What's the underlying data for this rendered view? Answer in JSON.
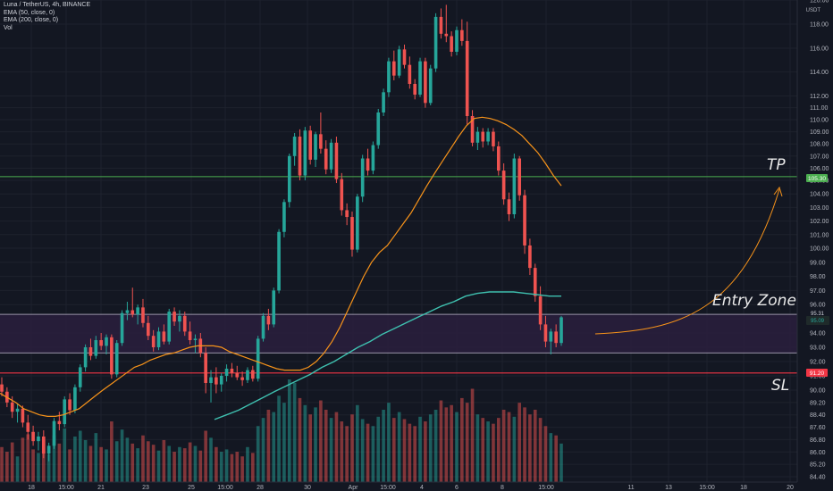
{
  "header": {
    "symbol_line": "Luna / TetherUS, 4h, BINANCE",
    "indicators": [
      "EMA (50, close, 0)",
      "EMA (200, close, 0)",
      "Vol"
    ],
    "currency": "USDT"
  },
  "colors": {
    "background": "#131722",
    "bull": "#26a69a",
    "bear": "#ef5350",
    "ema50": "#f7931a",
    "ema200": "#3fc1b0",
    "tp_line": "#4caf50",
    "sl_line": "#f23645",
    "zone_fill": "#2a1f3d",
    "zone_border": "#9a94a8"
  },
  "annotations": {
    "tp": "TP",
    "entry": "Entry Zone",
    "sl": "SL"
  },
  "price_tags": {
    "tp": "105.30",
    "sl": "91.20",
    "zone_top": "95.31",
    "current": "95.09"
  },
  "chart_data": {
    "type": "candlestick",
    "yaxis_ticks": [
      84.4,
      85.2,
      86.0,
      86.8,
      87.6,
      88.4,
      89.2,
      90.0,
      91.0,
      92.0,
      93.0,
      94.0,
      95.0,
      96.0,
      97.0,
      98.0,
      99.0,
      100.0,
      101.0,
      102.0,
      103.0,
      104.0,
      105.0,
      106.0,
      107.0,
      108.0,
      109.0,
      110.0,
      111.0,
      112.0,
      114.0,
      116.0,
      118.0,
      120.0
    ],
    "xaxis_ticks": [
      "18",
      "15:00",
      "21",
      "23",
      "25",
      "15:00",
      "28",
      "30",
      "Apr",
      "15:00",
      "4",
      "6",
      "8",
      "15:00",
      "11",
      "13",
      "15:00",
      "18",
      "20"
    ],
    "levels": {
      "tp": 105.3,
      "sl": 91.2,
      "zone_top": 95.31,
      "zone_bottom": 92.6
    },
    "ohlc": [
      [
        90.4,
        90.9,
        89.6,
        89.9
      ],
      [
        89.9,
        90.2,
        88.9,
        89.2
      ],
      [
        89.2,
        89.6,
        88.2,
        88.6
      ],
      [
        88.6,
        89.1,
        87.9,
        88.8
      ],
      [
        88.8,
        89.0,
        87.6,
        87.9
      ],
      [
        87.9,
        88.4,
        86.8,
        87.3
      ],
      [
        87.3,
        87.7,
        86.4,
        86.7
      ],
      [
        86.7,
        87.3,
        86.1,
        87.0
      ],
      [
        87.0,
        87.4,
        85.6,
        85.9
      ],
      [
        85.9,
        86.6,
        85.4,
        86.4
      ],
      [
        86.4,
        88.2,
        86.2,
        88.0
      ],
      [
        88.0,
        88.6,
        87.4,
        87.8
      ],
      [
        87.8,
        89.6,
        87.6,
        89.4
      ],
      [
        89.4,
        89.8,
        88.4,
        88.7
      ],
      [
        88.7,
        90.4,
        88.5,
        90.2
      ],
      [
        90.2,
        91.8,
        89.9,
        91.6
      ],
      [
        91.6,
        93.2,
        91.3,
        93.0
      ],
      [
        93.0,
        93.6,
        92.1,
        92.4
      ],
      [
        92.4,
        93.8,
        92.2,
        93.5
      ],
      [
        93.5,
        94.0,
        92.8,
        93.1
      ],
      [
        93.1,
        93.9,
        92.5,
        93.7
      ],
      [
        93.7,
        93.9,
        90.8,
        91.1
      ],
      [
        91.1,
        93.5,
        90.9,
        93.3
      ],
      [
        93.3,
        95.6,
        93.1,
        95.4
      ],
      [
        95.4,
        96.2,
        94.9,
        95.6
      ],
      [
        95.6,
        97.2,
        95.1,
        95.3
      ],
      [
        95.3,
        96.0,
        94.6,
        95.8
      ],
      [
        95.8,
        96.4,
        94.4,
        94.7
      ],
      [
        94.7,
        95.2,
        93.5,
        93.8
      ],
      [
        93.8,
        94.2,
        92.7,
        93.0
      ],
      [
        93.0,
        94.4,
        92.8,
        94.1
      ],
      [
        94.1,
        94.6,
        93.2,
        93.4
      ],
      [
        93.4,
        95.7,
        93.2,
        95.5
      ],
      [
        95.5,
        95.8,
        94.5,
        94.8
      ],
      [
        94.8,
        95.6,
        94.1,
        95.2
      ],
      [
        95.2,
        95.5,
        93.8,
        94.1
      ],
      [
        94.1,
        94.8,
        93.2,
        93.5
      ],
      [
        93.5,
        93.9,
        92.6,
        93.6
      ],
      [
        93.6,
        94.0,
        92.3,
        92.6
      ],
      [
        92.6,
        93.0,
        89.8,
        90.5
      ],
      [
        90.5,
        91.4,
        89.2,
        90.9
      ],
      [
        90.9,
        91.6,
        89.8,
        90.4
      ],
      [
        90.4,
        91.2,
        89.9,
        91.0
      ],
      [
        91.0,
        91.8,
        90.6,
        91.5
      ],
      [
        91.5,
        91.9,
        90.9,
        91.2
      ],
      [
        91.2,
        91.7,
        90.7,
        90.9
      ],
      [
        90.9,
        91.3,
        90.3,
        90.7
      ],
      [
        90.7,
        91.6,
        90.5,
        91.4
      ],
      [
        91.4,
        91.7,
        90.6,
        90.8
      ],
      [
        90.8,
        93.8,
        90.6,
        93.6
      ],
      [
        93.6,
        95.4,
        93.4,
        95.2
      ],
      [
        95.2,
        95.7,
        94.2,
        94.6
      ],
      [
        94.6,
        97.2,
        94.4,
        97.0
      ],
      [
        97.0,
        101.4,
        96.8,
        101.2
      ],
      [
        101.2,
        103.6,
        100.8,
        103.4
      ],
      [
        103.4,
        107.2,
        103.0,
        107.0
      ],
      [
        107.0,
        108.9,
        106.2,
        108.6
      ],
      [
        108.6,
        109.2,
        105.0,
        105.4
      ],
      [
        105.4,
        109.4,
        105.0,
        109.1
      ],
      [
        109.1,
        109.5,
        106.3,
        106.7
      ],
      [
        106.7,
        109.0,
        106.1,
        108.8
      ],
      [
        108.8,
        110.6,
        107.2,
        107.6
      ],
      [
        107.6,
        108.3,
        105.5,
        105.9
      ],
      [
        105.9,
        108.4,
        105.6,
        108.1
      ],
      [
        108.1,
        108.6,
        104.8,
        105.1
      ],
      [
        105.1,
        105.6,
        102.4,
        102.8
      ],
      [
        102.8,
        103.3,
        101.7,
        102.3
      ],
      [
        102.3,
        102.7,
        99.4,
        99.9
      ],
      [
        99.9,
        104.0,
        99.7,
        103.8
      ],
      [
        103.8,
        107.1,
        103.4,
        106.8
      ],
      [
        106.8,
        107.6,
        105.4,
        105.8
      ],
      [
        105.8,
        108.2,
        105.5,
        107.9
      ],
      [
        107.9,
        110.9,
        107.6,
        110.6
      ],
      [
        110.6,
        112.6,
        110.3,
        112.3
      ],
      [
        112.3,
        115.2,
        111.9,
        114.9
      ],
      [
        114.9,
        115.8,
        113.3,
        113.7
      ],
      [
        113.7,
        116.2,
        113.5,
        115.9
      ],
      [
        115.9,
        116.3,
        114.3,
        114.6
      ],
      [
        114.6,
        115.3,
        112.6,
        113.0
      ],
      [
        113.0,
        113.4,
        111.7,
        112.1
      ],
      [
        112.1,
        115.2,
        111.9,
        114.9
      ],
      [
        114.9,
        115.2,
        111.0,
        111.4
      ],
      [
        111.4,
        114.6,
        111.2,
        114.3
      ],
      [
        114.3,
        118.9,
        114.0,
        118.6
      ],
      [
        118.6,
        119.3,
        116.8,
        117.2
      ],
      [
        117.2,
        119.6,
        116.5,
        117.0
      ],
      [
        117.0,
        117.4,
        115.3,
        115.7
      ],
      [
        115.7,
        117.8,
        115.4,
        117.5
      ],
      [
        117.5,
        118.4,
        116.2,
        116.6
      ],
      [
        116.6,
        118.2,
        109.6,
        110.3
      ],
      [
        110.3,
        110.8,
        107.8,
        108.1
      ],
      [
        108.1,
        109.4,
        107.5,
        109.0
      ],
      [
        109.0,
        109.3,
        107.7,
        108.2
      ],
      [
        108.2,
        109.3,
        107.9,
        109.0
      ],
      [
        109.0,
        109.3,
        107.4,
        107.8
      ],
      [
        107.8,
        108.2,
        105.4,
        105.8
      ],
      [
        105.8,
        106.4,
        103.2,
        103.6
      ],
      [
        103.6,
        104.1,
        102.0,
        102.5
      ],
      [
        102.5,
        107.2,
        102.2,
        106.8
      ],
      [
        106.8,
        107.0,
        103.5,
        103.9
      ],
      [
        103.9,
        104.3,
        99.6,
        100.2
      ],
      [
        100.2,
        100.7,
        98.1,
        98.6
      ],
      [
        98.6,
        98.9,
        96.2,
        96.6
      ],
      [
        96.6,
        97.3,
        94.2,
        94.6
      ],
      [
        94.6,
        95.2,
        93.0,
        93.4
      ],
      [
        93.4,
        94.3,
        92.5,
        94.1
      ],
      [
        94.1,
        94.6,
        93.0,
        93.3
      ],
      [
        93.3,
        95.2,
        93.1,
        95.1
      ]
    ],
    "volume": [
      30,
      26,
      34,
      22,
      38,
      41,
      28,
      25,
      36,
      24,
      40,
      33,
      46,
      28,
      39,
      44,
      36,
      31,
      42,
      30,
      28,
      52,
      35,
      45,
      38,
      33,
      29,
      40,
      35,
      32,
      27,
      36,
      31,
      26,
      30,
      29,
      34,
      31,
      27,
      44,
      38,
      30,
      26,
      28,
      24,
      26,
      22,
      30,
      25,
      48,
      55,
      62,
      60,
      74,
      68,
      88,
      85,
      72,
      66,
      58,
      64,
      70,
      62,
      55,
      60,
      52,
      48,
      58,
      66,
      54,
      50,
      48,
      56,
      62,
      68,
      55,
      60,
      54,
      50,
      48,
      56,
      52,
      58,
      62,
      70,
      64,
      66,
      60,
      72,
      68,
      80,
      58,
      55,
      52,
      50,
      55,
      62,
      60,
      56,
      68,
      64,
      58,
      62,
      55,
      48,
      42,
      40,
      33
    ],
    "ema50": [
      89.8,
      89.5,
      89.2,
      88.8,
      88.6,
      88.4,
      88.3,
      88.3,
      88.4,
      88.6,
      88.8,
      89.2,
      89.6,
      90.0,
      90.4,
      90.8,
      91.2,
      91.6,
      91.8,
      92.1,
      92.3,
      92.5,
      92.6,
      92.8,
      93.0,
      93.1,
      93.1,
      93.1,
      93.0,
      92.7,
      92.5,
      92.3,
      92.1,
      91.9,
      91.7,
      91.5,
      91.4,
      91.4,
      91.4,
      91.6,
      92.0,
      92.6,
      93.4,
      94.4,
      95.6,
      96.8,
      98.0,
      99.0,
      99.7,
      100.2,
      101.0,
      101.8,
      102.6,
      103.6,
      104.6,
      105.6,
      106.6,
      107.6,
      108.6,
      109.5,
      110.1,
      110.2,
      110.1,
      109.9,
      109.6,
      109.2,
      108.7,
      108.0,
      107.3,
      106.4,
      105.4,
      104.6
    ],
    "ema200": [
      88.1,
      88.4,
      88.7,
      89.1,
      89.5,
      89.9,
      90.3,
      90.7,
      91.1,
      91.6,
      92.0,
      92.5,
      93.0,
      93.4,
      93.9,
      94.3,
      94.7,
      95.1,
      95.5,
      95.9,
      96.2,
      96.6,
      96.8,
      96.9,
      96.9,
      96.9,
      96.8,
      96.7,
      96.6,
      96.6
    ]
  }
}
